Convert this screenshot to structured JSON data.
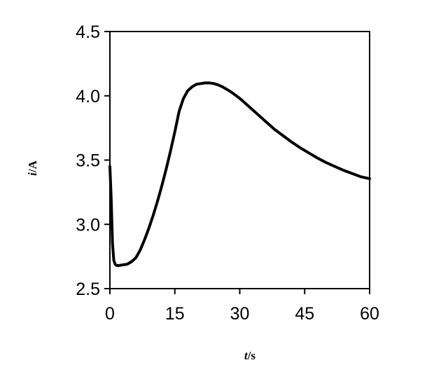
{
  "chart_data": {
    "type": "line",
    "xlabel": {
      "var": "t",
      "unit": "/s"
    },
    "ylabel": {
      "var": "i",
      "unit": "/A"
    },
    "xlim": [
      0,
      60
    ],
    "ylim": [
      2.5,
      4.5
    ],
    "xticks": [
      "0",
      "15",
      "30",
      "45",
      "60"
    ],
    "yticks": [
      "2.5",
      "3.0",
      "3.5",
      "4.0",
      "4.5"
    ],
    "grid": false,
    "legend": "none",
    "line_color": "#000000",
    "series": [
      {
        "x": [
          0,
          0.3,
          0.6,
          0.9,
          1.2,
          1.6,
          2.0,
          3.0,
          4.0,
          5.0,
          6.0,
          7.0,
          8.0,
          9.0,
          10.0,
          11.0,
          12.0,
          13.0,
          14.0,
          15.0,
          16.0,
          17.0,
          18.0,
          19.0,
          20.0,
          21.0,
          22.0,
          23.0,
          24.0,
          25.0,
          26.0,
          27.0,
          28.0,
          29.0,
          30.0,
          32.0,
          34.0,
          36.0,
          38.0,
          40.0,
          42.0,
          44.0,
          46.0,
          48.0,
          50.0,
          52.0,
          54.0,
          56.0,
          58.0,
          60.0
        ],
        "y": [
          3.45,
          3.2,
          2.85,
          2.72,
          2.69,
          2.68,
          2.68,
          2.685,
          2.69,
          2.71,
          2.74,
          2.8,
          2.88,
          2.97,
          3.07,
          3.18,
          3.3,
          3.43,
          3.57,
          3.72,
          3.88,
          3.98,
          4.04,
          4.07,
          4.09,
          4.095,
          4.1,
          4.1,
          4.095,
          4.085,
          4.07,
          4.05,
          4.03,
          4.005,
          3.98,
          3.92,
          3.86,
          3.8,
          3.74,
          3.69,
          3.64,
          3.595,
          3.555,
          3.515,
          3.48,
          3.45,
          3.42,
          3.395,
          3.37,
          3.355
        ]
      }
    ]
  }
}
